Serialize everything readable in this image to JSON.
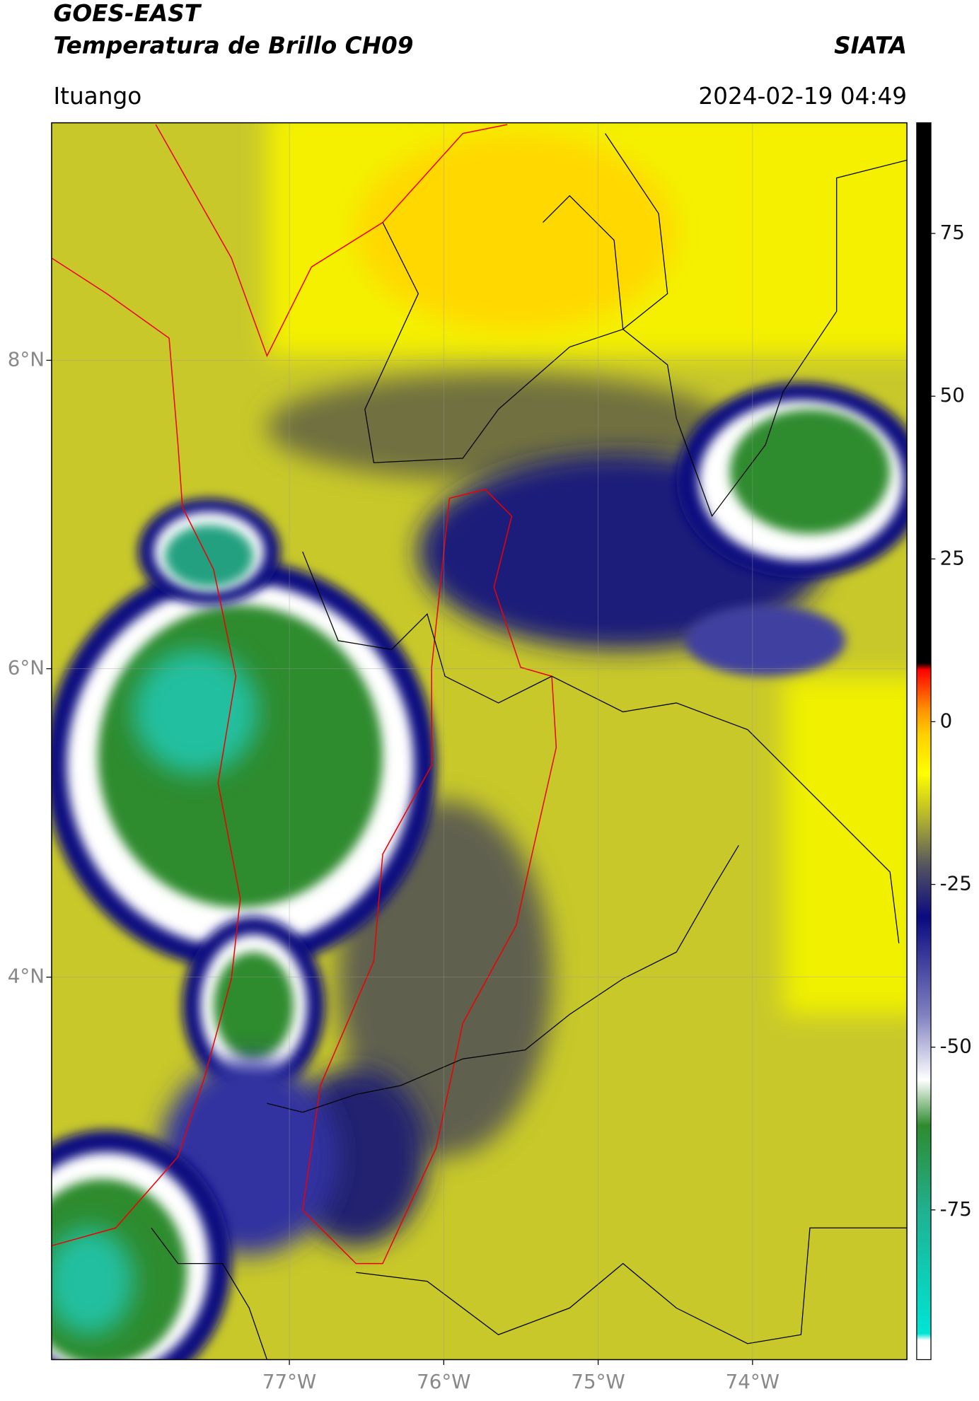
{
  "header": {
    "title": "GOES-EAST",
    "subtitle": "Temperatura de Brillo CH09",
    "source": "SIATA",
    "location": "Ituango",
    "datetime": "2024-02-19 04:49"
  },
  "map": {
    "xlim": [
      -78.54,
      -73.0
    ],
    "ylim": [
      1.52,
      9.54
    ],
    "grid": true,
    "xticks": [
      {
        "value": -77,
        "label": "77°W"
      },
      {
        "value": -76,
        "label": "76°W"
      },
      {
        "value": -75,
        "label": "75°W"
      },
      {
        "value": -74,
        "label": "74°W"
      }
    ],
    "yticks": [
      {
        "value": 8,
        "label": "8°N"
      },
      {
        "value": 6,
        "label": "6°N"
      },
      {
        "value": 4,
        "label": "4°N"
      }
    ]
  },
  "colorbar": {
    "range": [
      -98,
      92
    ],
    "ticks": [
      75,
      50,
      25,
      0,
      -25,
      -50,
      -75
    ],
    "stops": [
      [
        -98,
        "#ffffff"
      ],
      [
        -95,
        "#ffffff"
      ],
      [
        -94,
        "#00e5d5"
      ],
      [
        -75,
        "#20b090"
      ],
      [
        -62,
        "#2e8b2e"
      ],
      [
        -55,
        "#ffffff"
      ],
      [
        -45,
        "#8080c0"
      ],
      [
        -30,
        "#0a0a80"
      ],
      [
        -22,
        "#555560"
      ],
      [
        -15,
        "#b0b030"
      ],
      [
        -8,
        "#ffff00"
      ],
      [
        -2,
        "#ffd000"
      ],
      [
        2,
        "#ff9000"
      ],
      [
        8,
        "#ff0000"
      ],
      [
        9,
        "#000000"
      ],
      [
        92,
        "#000000"
      ]
    ]
  }
}
